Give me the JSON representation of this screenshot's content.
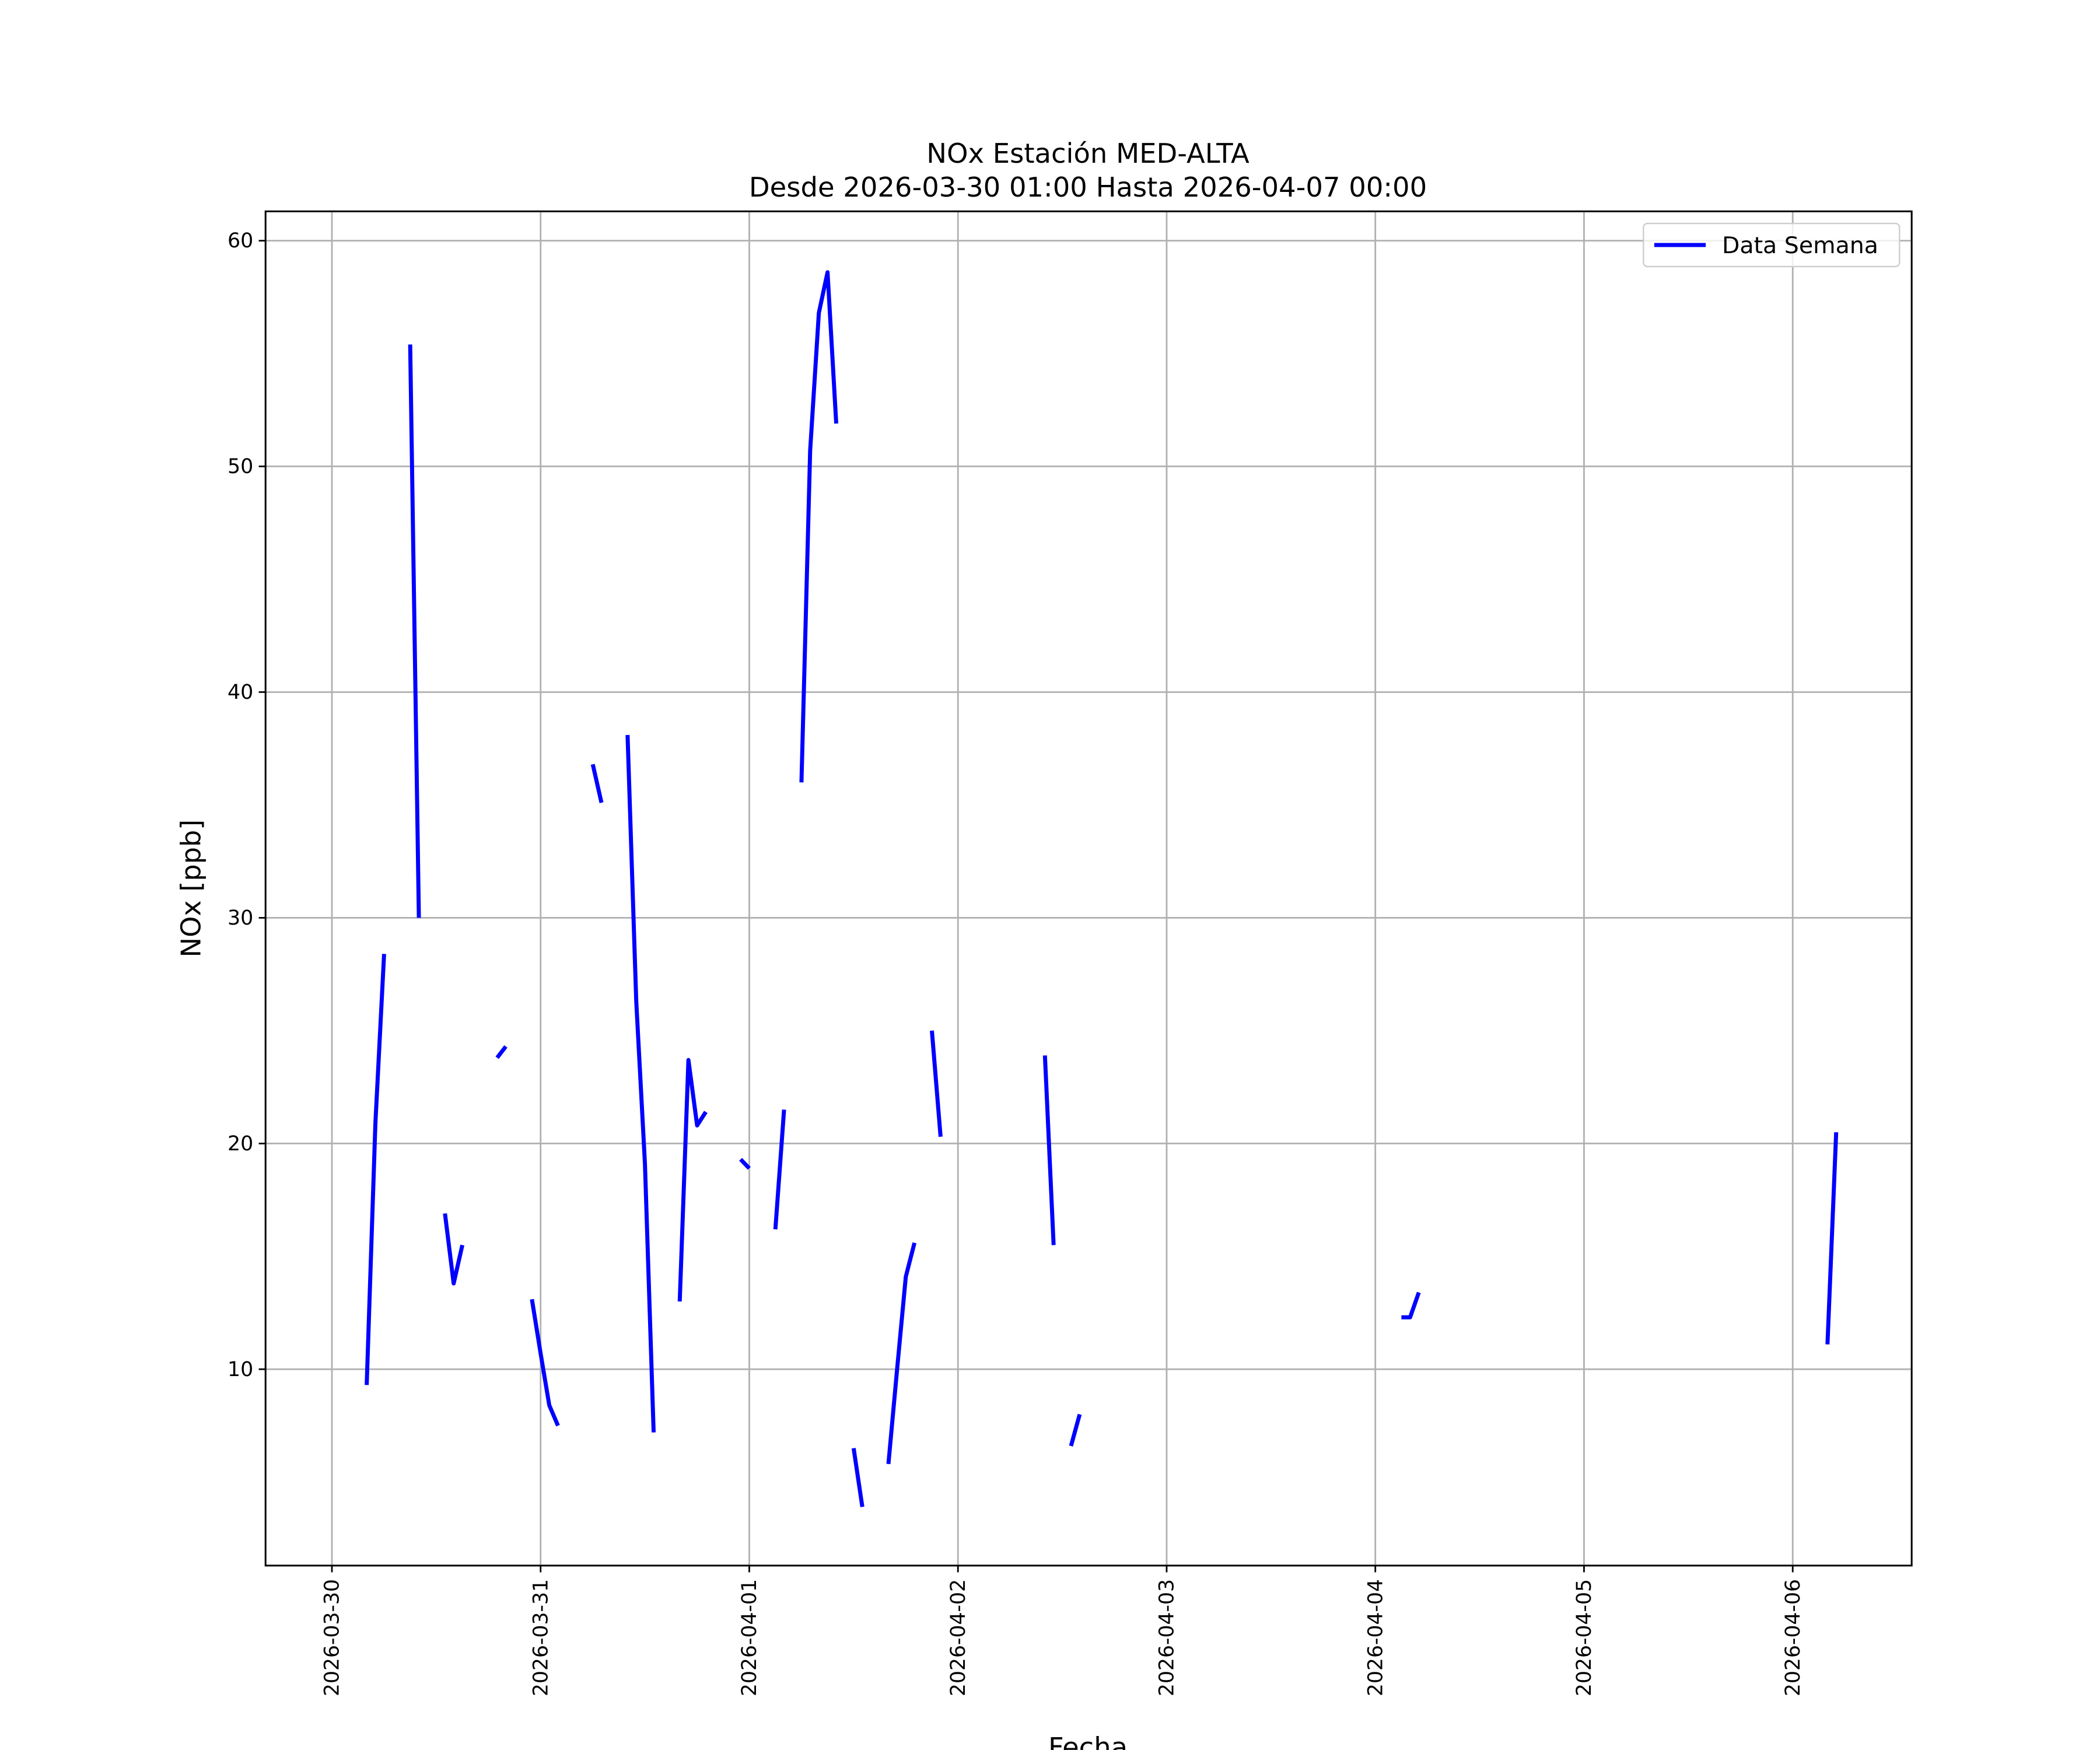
{
  "chart_data": {
    "type": "line",
    "title": "NOx Estación MED-ALTA",
    "subtitle": "Desde 2026-03-30 01:00 Hasta 2026-04-07 00:00",
    "x_label": "Fecha",
    "y_label": "NOx [ppb]",
    "x": [
      "2026-03-30 04:00",
      "2026-03-30 05:00",
      "2026-03-30 06:00",
      null,
      "2026-03-30 09:00",
      "2026-03-30 10:00",
      null,
      "2026-03-30 13:00",
      "2026-03-30 14:00",
      "2026-03-30 15:00",
      null,
      "2026-03-30 19:00",
      "2026-03-30 20:00",
      null,
      "2026-03-30 23:00",
      "2026-03-31 00:00",
      "2026-03-31 01:00",
      "2026-03-31 02:00",
      null,
      "2026-03-31 06:00",
      "2026-03-31 07:00",
      null,
      "2026-03-31 10:00",
      "2026-03-31 11:00",
      "2026-03-31 12:00",
      "2026-03-31 13:00",
      null,
      "2026-03-31 16:00",
      "2026-03-31 17:00",
      "2026-03-31 18:00",
      "2026-03-31 19:00",
      null,
      "2026-03-31 23:00",
      "2026-04-01 00:00",
      null,
      "2026-04-01 03:00",
      "2026-04-01 04:00",
      null,
      "2026-04-01 06:00",
      "2026-04-01 07:00",
      "2026-04-01 08:00",
      "2026-04-01 09:00",
      "2026-04-01 10:00",
      null,
      "2026-04-01 12:00",
      "2026-04-01 13:00",
      null,
      "2026-04-01 16:00",
      "2026-04-01 17:00",
      "2026-04-01 18:00",
      "2026-04-01 19:00",
      null,
      "2026-04-01 21:00",
      "2026-04-01 22:00",
      null,
      "2026-04-02 10:00",
      "2026-04-02 11:00",
      null,
      "2026-04-02 13:00",
      "2026-04-02 14:00",
      null,
      "2026-04-04 03:00",
      "2026-04-04 04:00",
      "2026-04-04 05:00",
      null,
      "2026-04-06 04:00",
      "2026-04-06 05:00"
    ],
    "series": [
      {
        "name": "Data Semana",
        "color": "#0000ff",
        "values": [
          9.3,
          20.9,
          28.4,
          null,
          55.4,
          30.0,
          null,
          16.9,
          13.8,
          15.5,
          null,
          23.8,
          24.3,
          null,
          13.1,
          10.7,
          8.4,
          7.5,
          null,
          36.8,
          35.1,
          null,
          38.1,
          26.3,
          19.1,
          7.2,
          null,
          13.0,
          23.7,
          20.8,
          21.4,
          null,
          19.3,
          18.9,
          null,
          16.2,
          21.5,
          null,
          36.0,
          50.7,
          56.8,
          58.6,
          51.9,
          null,
          6.5,
          3.9,
          null,
          5.8,
          10.0,
          14.1,
          15.6,
          null,
          25.0,
          20.3,
          null,
          23.9,
          15.5,
          null,
          6.6,
          8.0,
          null,
          12.3,
          12.3,
          13.4,
          null,
          11.1,
          20.5
        ]
      }
    ],
    "xlim": [
      "2026-03-29 16:22",
      "2026-04-06 13:41"
    ],
    "xticks": [
      "2026-03-30",
      "2026-03-31",
      "2026-04-01",
      "2026-04-02",
      "2026-04-03",
      "2026-04-04",
      "2026-04-05",
      "2026-04-06"
    ],
    "ylim": [
      1.3,
      61.3
    ],
    "yticks": [
      10,
      20,
      30,
      40,
      50,
      60
    ],
    "grid": true,
    "legend": "upper right"
  }
}
